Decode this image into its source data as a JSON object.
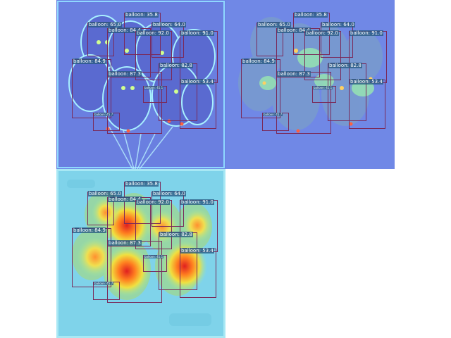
{
  "panels": [
    {
      "name": "original-attention-overlay",
      "style": "blue-outline"
    },
    {
      "name": "lowres-attention-overlay",
      "style": "blue-soft"
    },
    {
      "name": "heatmap-attention-overlay",
      "style": "jet-heat"
    }
  ],
  "detections": [
    {
      "label": "balloon: 35.8"
    },
    {
      "label": "balloon: 65.0"
    },
    {
      "label": "balloon: 64.0"
    },
    {
      "label": "balloon: 84.4"
    },
    {
      "label": "balloon: 92.0"
    },
    {
      "label": "balloon: 91.0"
    },
    {
      "label": "balloon: 84.9"
    },
    {
      "label": "balloon: 82.8"
    },
    {
      "label": "balloon: 87.3"
    },
    {
      "label": "balloon: 53.4"
    },
    {
      "label": "balloon: 41.1"
    },
    {
      "label": "balloon: 45.7"
    }
  ],
  "colors": {
    "box_border": "#7a2a5a",
    "label_bg": "#285a82",
    "label_text": "#ffffff",
    "panel_blue": "#6a7fe0",
    "heat_bg": "#7fd3ea"
  }
}
